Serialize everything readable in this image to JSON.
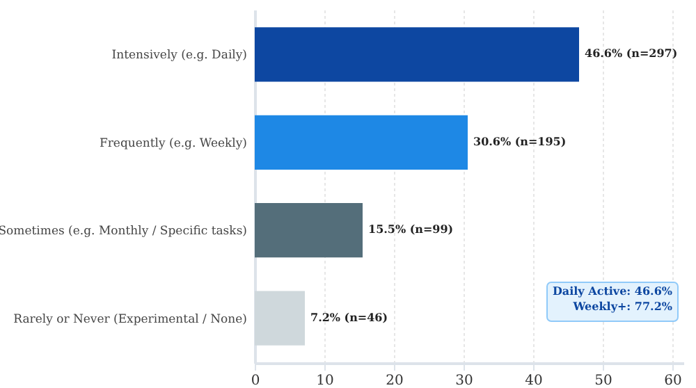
{
  "chart_data": {
    "type": "bar",
    "orientation": "horizontal",
    "categories": [
      "Intensively (e.g. Daily)",
      "Frequently (e.g. Weekly)",
      "Sometimes (e.g. Monthly / Specific tasks)",
      "Rarely or Never (Experimental / None)"
    ],
    "values": [
      46.6,
      30.6,
      15.5,
      7.2
    ],
    "colors": [
      "#0d47a1",
      "#1e88e5",
      "#546e7a",
      "#cfd8dc"
    ],
    "value_labels": [
      "46.6% (n=297)",
      "30.6% (n=195)",
      "15.5% (n=99)",
      "7.2% (n=46)"
    ],
    "xlim": [
      0,
      61.6
    ],
    "xticks": [
      0,
      10,
      20,
      30,
      40,
      50,
      60
    ],
    "grid": "x",
    "annotations": [
      "Daily Active: 46.6%\nWeekly+: 77.2%"
    ]
  }
}
